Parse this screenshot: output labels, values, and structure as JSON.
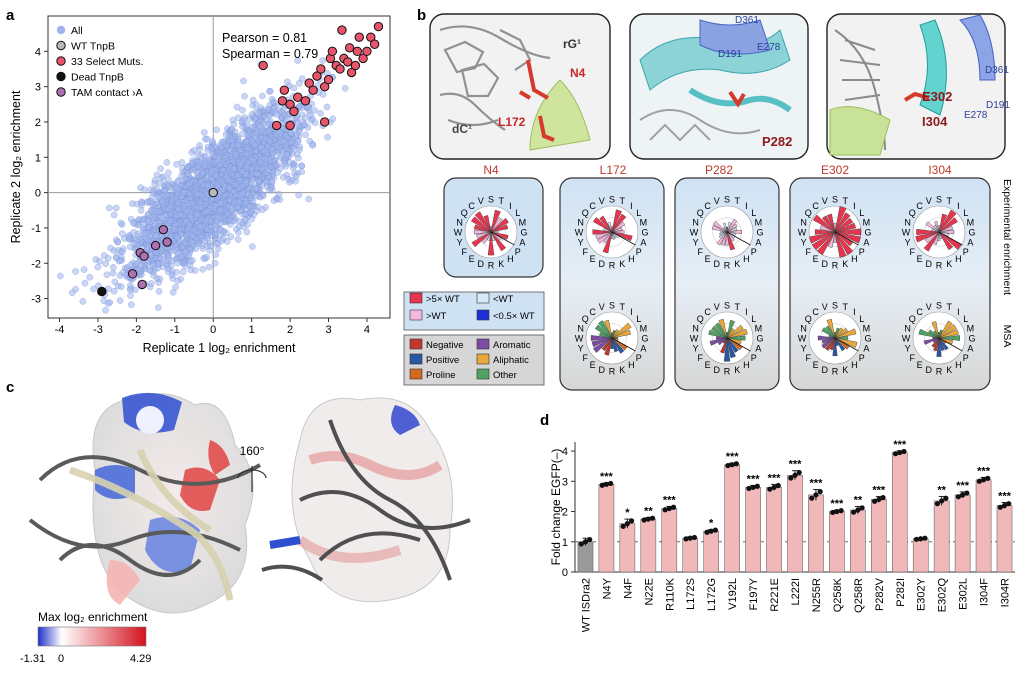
{
  "panels": {
    "a": "a",
    "b": "b",
    "c": "c",
    "d": "d"
  },
  "chart_data": [
    {
      "type": "scatter",
      "xlabel": "Replicate 1 log₂ enrichment",
      "ylabel": "Replicate 2 log₂ enrichment",
      "xlim": [
        -4.3,
        4.6
      ],
      "ylim": [
        -3.55,
        5.0
      ],
      "xticks": [
        "-4",
        "-3",
        "-2",
        "-1",
        "0",
        "1",
        "2",
        "3",
        "4"
      ],
      "yticks": [
        "-3",
        "-2",
        "-1",
        "0",
        "1",
        "2",
        "3",
        "4"
      ],
      "annotations": [
        "Pearson = 0.81",
        "Spearman = 0.79"
      ],
      "legend_position": "top-left",
      "legend": [
        {
          "label": "All",
          "color": "#9fb4ec"
        },
        {
          "label": "WT TnpB",
          "color": "#b9b9b9"
        },
        {
          "label": "33 Select Muts.",
          "color": "#e8546a"
        },
        {
          "label": "Dead TnpB",
          "color": "#111111"
        },
        {
          "label": "TAM contact ›A",
          "color": "#b06fb0"
        }
      ],
      "series": [
        {
          "name": "WT TnpB",
          "points": [
            [
              0.0,
              0.0
            ]
          ]
        },
        {
          "name": "Dead TnpB",
          "points": [
            [
              -2.9,
              -2.8
            ]
          ]
        },
        {
          "name": "TAM contact ›A",
          "points": [
            [
              -2.1,
              -2.3
            ],
            [
              -1.9,
              -1.7
            ],
            [
              -1.8,
              -1.8
            ],
            [
              -1.5,
              -1.5
            ],
            [
              -1.2,
              -1.4
            ],
            [
              -1.85,
              -2.6
            ],
            [
              -1.3,
              -1.05
            ]
          ]
        },
        {
          "name": "33 Select Muts.",
          "points": [
            [
              1.3,
              3.6
            ],
            [
              1.65,
              1.9
            ],
            [
              1.8,
              2.6
            ],
            [
              2.0,
              2.5
            ],
            [
              2.1,
              2.3
            ],
            [
              2.2,
              2.7
            ],
            [
              2.4,
              2.6
            ],
            [
              2.5,
              3.1
            ],
            [
              2.6,
              2.9
            ],
            [
              2.7,
              3.3
            ],
            [
              2.8,
              3.5
            ],
            [
              2.9,
              3.0
            ],
            [
              3.0,
              3.2
            ],
            [
              3.05,
              3.8
            ],
            [
              3.1,
              4.0
            ],
            [
              3.2,
              3.6
            ],
            [
              3.3,
              3.5
            ],
            [
              3.35,
              4.6
            ],
            [
              3.4,
              3.8
            ],
            [
              3.5,
              3.7
            ],
            [
              3.55,
              4.1
            ],
            [
              3.6,
              3.4
            ],
            [
              3.7,
              3.6
            ],
            [
              3.75,
              4.0
            ],
            [
              3.8,
              4.4
            ],
            [
              3.9,
              3.8
            ],
            [
              4.0,
              4.0
            ],
            [
              4.1,
              4.4
            ],
            [
              4.2,
              4.2
            ],
            [
              4.3,
              4.7
            ],
            [
              2.9,
              2.0
            ],
            [
              2.0,
              1.9
            ],
            [
              1.85,
              2.9
            ]
          ]
        }
      ]
    },
    {
      "type": "bar",
      "ylabel": "Fold change EGFP(–)",
      "ylim": [
        0,
        4.3
      ],
      "yticks": [
        "0",
        "1",
        "2",
        "3",
        "4"
      ],
      "reference_line": 1,
      "categories": [
        "WT ISDra2",
        "N4Y",
        "N4F",
        "N22E",
        "R110K",
        "L172S",
        "L172G",
        "V192L",
        "F197Y",
        "R221E",
        "L222I",
        "N255R",
        "Q258K",
        "Q258R",
        "P282V",
        "P282I",
        "E302Y",
        "E302Q",
        "E302L",
        "I304F",
        "I304R"
      ],
      "values": [
        1.0,
        2.9,
        1.6,
        1.75,
        2.1,
        1.12,
        1.35,
        3.55,
        2.8,
        2.8,
        3.2,
        2.55,
        2.0,
        2.05,
        2.4,
        3.95,
        1.1,
        2.35,
        2.55,
        3.05,
        2.2
      ],
      "errors": [
        0.12,
        0.05,
        0.15,
        0.05,
        0.07,
        0.04,
        0.06,
        0.05,
        0.06,
        0.1,
        0.15,
        0.18,
        0.05,
        0.12,
        0.1,
        0.06,
        0.03,
        0.15,
        0.1,
        0.08,
        0.1
      ],
      "significance": [
        "",
        "***",
        "*",
        "**",
        "***",
        "",
        "*",
        "***",
        "***",
        "***",
        "***",
        "***",
        "***",
        "**",
        "***",
        "***",
        "",
        "**",
        "***",
        "***",
        "***"
      ],
      "colors": {
        "wt": "#9a9a9a",
        "mut": "#f0b8b8",
        "dot": "#111111"
      }
    }
  ],
  "panel_b": {
    "structure_labels": {
      "n4": "N4",
      "l172": "L172",
      "rg1": "rG¹",
      "dc1": "dC¹",
      "p282": "P282",
      "d191a": "D191",
      "e278a": "E278",
      "d361a": "D361",
      "e302": "E302",
      "i304": "I304",
      "d361b": "D361",
      "d191b": "D191",
      "e278b": "E278"
    },
    "roses": [
      {
        "label": "N4"
      },
      {
        "label": "L172"
      },
      {
        "label": "P282"
      },
      {
        "label": "E302"
      },
      {
        "label": "I304"
      }
    ],
    "rose_letters": [
      "S",
      "T",
      "I",
      "L",
      "M",
      "G",
      "A",
      "P",
      "H",
      "K",
      "R",
      "D",
      "E",
      "F",
      "Y",
      "W",
      "N",
      "Q",
      "C",
      "V"
    ],
    "side_labels": {
      "experimental": "Experimental enrichment",
      "msa": "MSA"
    },
    "legend_enrichment": [
      {
        "label": ">5× WT",
        "color": "#e8354f"
      },
      {
        "label": "<WT",
        "color": "#d8e9f5"
      },
      {
        "label": ">WT",
        "color": "#f2b8dd"
      },
      {
        "label": "<0.5× WT",
        "color": "#1b2fd6"
      }
    ],
    "legend_class": [
      {
        "label": "Negative",
        "color": "#c0392b"
      },
      {
        "label": "Aromatic",
        "color": "#7d4ba3"
      },
      {
        "label": "Positive",
        "color": "#2a56a6"
      },
      {
        "label": "Aliphatic",
        "color": "#e9a93a"
      },
      {
        "label": "Proline",
        "color": "#d2691e"
      },
      {
        "label": "Other",
        "color": "#4fa362"
      }
    ]
  },
  "panel_c": {
    "rotation": "160°",
    "colorbar_title": "Max log₂ enrichment",
    "colorbar_min": "-1.31",
    "colorbar_zero": "0",
    "colorbar_max": "4.29"
  }
}
